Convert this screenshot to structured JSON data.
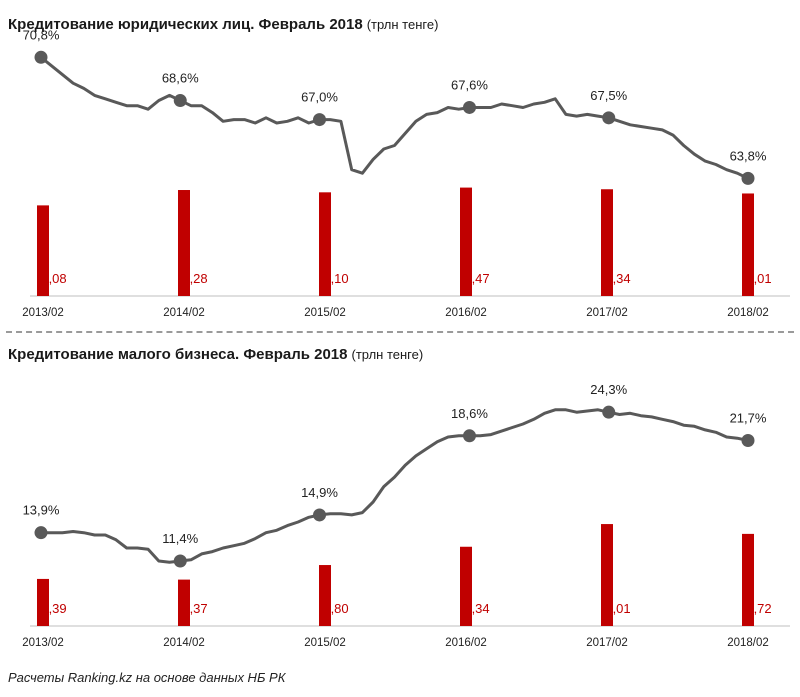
{
  "colors": {
    "bar": "#c00000",
    "line": "#595959",
    "marker": "#595959",
    "axis": "#bfbfbf",
    "value_text": "#c00000",
    "share_text": "#222222"
  },
  "source": "Расчеты Ranking.kz на основе данных НБ РК",
  "chart_data": [
    {
      "type": "bar",
      "title": "Кредитование юридических лиц. Февраль 2018",
      "unit": "(трлн тенге)",
      "categories": [
        "2013/02",
        "2014/02",
        "2015/02",
        "2016/02",
        "2017/02",
        "2018/02"
      ],
      "values": [
        7.08,
        8.28,
        8.1,
        8.47,
        8.34,
        8.01
      ],
      "value_labels": [
        "7,08",
        "8,28",
        "8,10",
        "8,47",
        "8,34",
        "8,01"
      ],
      "share_labels": [
        "70,8%",
        "68,6%",
        "67,0%",
        "67,6%",
        "67,5%",
        "63,8%"
      ],
      "line": [
        70.8,
        70.3,
        69.8,
        69.3,
        69.0,
        68.6,
        68.4,
        68.2,
        68.0,
        68.0,
        67.8,
        68.3,
        68.6,
        68.3,
        68.0,
        68.0,
        67.6,
        67.1,
        67.2,
        67.2,
        67.0,
        67.3,
        67.0,
        67.1,
        67.3,
        67.0,
        67.2,
        67.2,
        67.1,
        64.3,
        64.1,
        64.9,
        65.5,
        65.7,
        66.4,
        67.1,
        67.5,
        67.6,
        67.9,
        67.8,
        67.9,
        67.9,
        67.9,
        68.1,
        68.0,
        67.9,
        68.1,
        68.2,
        68.4,
        67.5,
        67.4,
        67.5,
        67.4,
        67.3,
        67.1,
        66.9,
        66.8,
        66.7,
        66.6,
        66.3,
        65.7,
        65.2,
        64.8,
        64.6,
        64.3,
        64.1,
        63.8
      ],
      "line_ylim": [
        57.0,
        71.8
      ],
      "bar_ylim": [
        0,
        20
      ]
    },
    {
      "type": "bar",
      "title": "Кредитование малого бизнеса. Февраль 2018",
      "unit": "(трлн тенге)",
      "categories": [
        "2013/02",
        "2014/02",
        "2015/02",
        "2016/02",
        "2017/02",
        "2018/02"
      ],
      "values": [
        1.39,
        1.37,
        1.8,
        2.34,
        3.01,
        2.72
      ],
      "value_labels": [
        "1,39",
        "1,37",
        "1,80",
        "2,34",
        "3,01",
        "2,72"
      ],
      "share_labels": [
        "13,9%",
        "11,4%",
        "14,9%",
        "18,6%",
        "24,3%",
        "21,7%"
      ],
      "line": [
        13.9,
        13.9,
        13.9,
        14.0,
        13.9,
        13.7,
        13.7,
        13.3,
        12.6,
        12.6,
        12.5,
        11.5,
        11.4,
        11.5,
        11.6,
        12.1,
        12.3,
        12.6,
        12.8,
        13.0,
        13.4,
        13.9,
        14.1,
        14.5,
        14.8,
        15.2,
        15.4,
        15.5,
        15.5,
        15.4,
        15.6,
        16.5,
        17.8,
        18.6,
        19.6,
        20.4,
        21.0,
        21.6,
        22.0,
        22.1,
        22.1,
        22.1,
        22.2,
        22.5,
        22.8,
        23.1,
        23.5,
        24.0,
        24.3,
        24.3,
        24.1,
        24.2,
        24.3,
        24.1,
        23.9,
        24.0,
        23.8,
        23.7,
        23.5,
        23.3,
        23.0,
        22.9,
        22.6,
        22.4,
        22.0,
        21.9,
        21.7
      ],
      "line_ylim": [
        6.0,
        27.5
      ],
      "bar_ylim": [
        0,
        7.5
      ]
    }
  ]
}
